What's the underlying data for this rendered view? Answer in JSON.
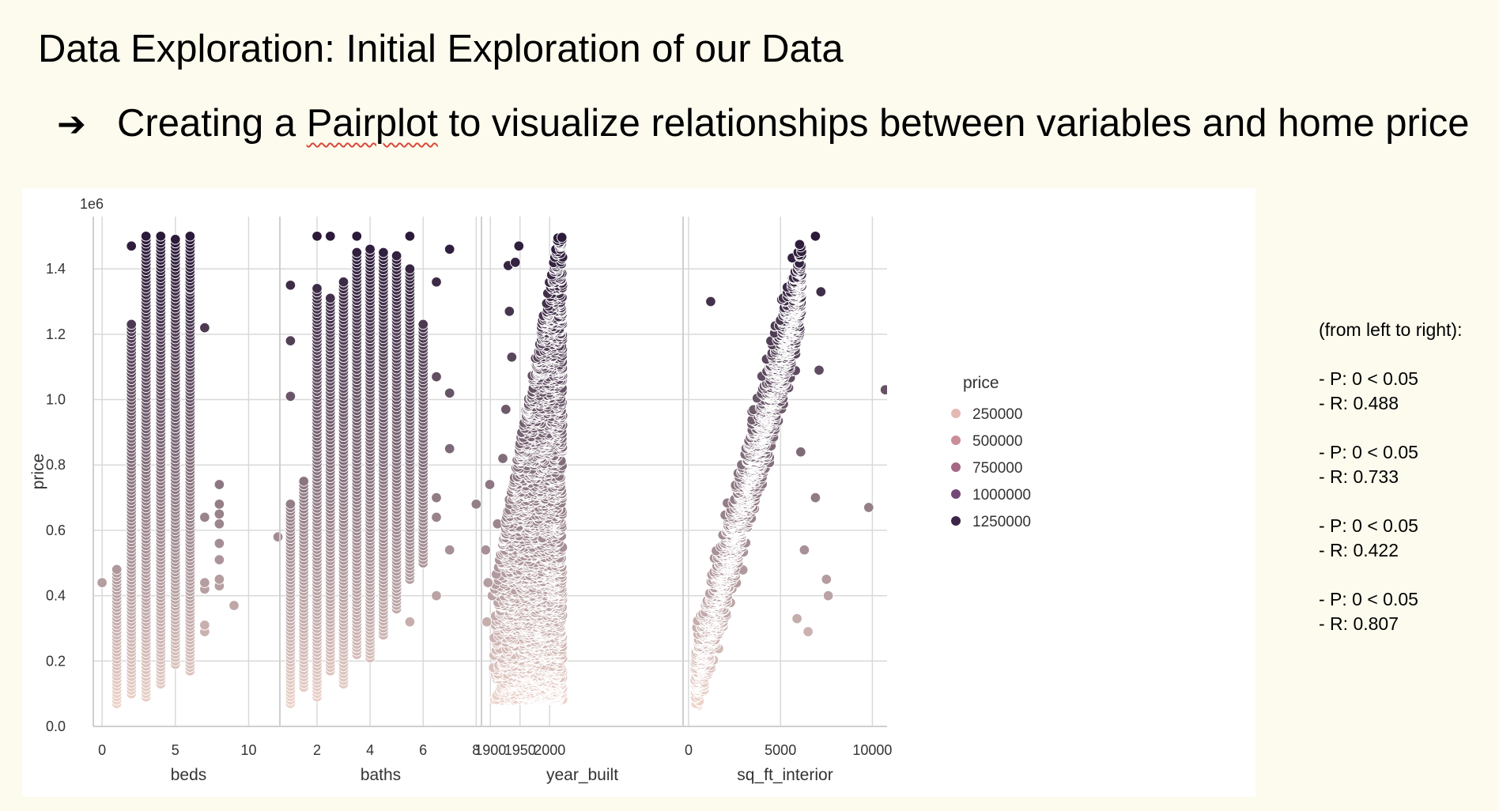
{
  "slide": {
    "title": "Data Exploration: Initial Exploration of our Data",
    "bullet_arrow": "➔",
    "bullet_before": "Creating a ",
    "bullet_underlined": "Pairplot",
    "bullet_after": " to visualize relationships between variables and home price"
  },
  "stats": {
    "note": "(from left to right):",
    "groups": [
      {
        "p": "- P: 0 < 0.05",
        "r": "- R: 0.488"
      },
      {
        "p": "- P: 0 < 0.05",
        "r": "- R: 0.733"
      },
      {
        "p": "- P: 0 < 0.05",
        "r": "- R: 0.422"
      },
      {
        "p": "- P: 0 < 0.05",
        "r": "- R: 0.807"
      }
    ]
  },
  "chart_data": {
    "type": "scatter",
    "ylabel": "price",
    "y_offset_label": "1e6",
    "ylim": [
      0,
      1.56
    ],
    "y_ticks": [
      0.0,
      0.2,
      0.4,
      0.6,
      0.8,
      1.0,
      1.2,
      1.4
    ],
    "y_tick_labels": [
      "0.0",
      "0.2",
      "0.4",
      "0.6",
      "0.8",
      "1.0",
      "1.2",
      "1.4"
    ],
    "grid": true,
    "legend": {
      "title": "price",
      "placement": "right",
      "entries": [
        "250000",
        "500000",
        "750000",
        "1000000",
        "1250000"
      ],
      "colors": [
        "#e4b9b3",
        "#c98e98",
        "#a66785",
        "#744876",
        "#3c2547"
      ]
    },
    "color_scale": {
      "low": "#f2d8ce",
      "high": "#2b1a39"
    },
    "panels": [
      {
        "xlabel": "beds",
        "xlim": [
          -0.6,
          12.4
        ],
        "x_ticks": [
          0,
          5,
          10
        ],
        "x_tick_labels": [
          "0",
          "5",
          "10"
        ],
        "columns": [
          {
            "x": 1,
            "min": 0.07,
            "max": 0.48
          },
          {
            "x": 2,
            "min": 0.1,
            "max": 1.23
          },
          {
            "x": 3,
            "min": 0.09,
            "max": 1.5
          },
          {
            "x": 4,
            "min": 0.13,
            "max": 1.5
          },
          {
            "x": 5,
            "min": 0.19,
            "max": 1.49
          },
          {
            "x": 6,
            "min": 0.17,
            "max": 1.5
          }
        ],
        "extra_points": [
          {
            "x": 0,
            "y": 0.44
          },
          {
            "x": 2,
            "y": 1.47
          },
          {
            "x": 6,
            "y": 1.34
          },
          {
            "x": 7,
            "y": 1.22
          },
          {
            "x": 7,
            "y": 0.64
          },
          {
            "x": 7,
            "y": 0.44
          },
          {
            "x": 7,
            "y": 0.42
          },
          {
            "x": 7,
            "y": 0.31
          },
          {
            "x": 7,
            "y": 0.29
          },
          {
            "x": 8,
            "y": 0.74
          },
          {
            "x": 8,
            "y": 0.68
          },
          {
            "x": 8,
            "y": 0.65
          },
          {
            "x": 8,
            "y": 0.62
          },
          {
            "x": 8,
            "y": 0.56
          },
          {
            "x": 8,
            "y": 0.51
          },
          {
            "x": 8,
            "y": 0.45
          },
          {
            "x": 8,
            "y": 0.43
          },
          {
            "x": 9,
            "y": 0.37
          },
          {
            "x": 12,
            "y": 0.58
          }
        ]
      },
      {
        "xlabel": "baths",
        "xlim": [
          0.6,
          8.2
        ],
        "x_ticks": [
          2,
          4,
          6,
          8
        ],
        "x_tick_labels": [
          "2",
          "4",
          "6",
          "8"
        ],
        "columns": [
          {
            "x": 1,
            "min": 0.07,
            "max": 0.68
          },
          {
            "x": 1.5,
            "min": 0.12,
            "max": 0.75
          },
          {
            "x": 2,
            "min": 0.09,
            "max": 1.34
          },
          {
            "x": 2.5,
            "min": 0.17,
            "max": 1.31
          },
          {
            "x": 3,
            "min": 0.13,
            "max": 1.36
          },
          {
            "x": 3.5,
            "min": 0.22,
            "max": 1.45
          },
          {
            "x": 4,
            "min": 0.21,
            "max": 1.46
          },
          {
            "x": 4.5,
            "min": 0.28,
            "max": 1.45
          },
          {
            "x": 5,
            "min": 0.36,
            "max": 1.44
          },
          {
            "x": 5.5,
            "min": 0.45,
            "max": 1.4
          },
          {
            "x": 6,
            "min": 0.5,
            "max": 1.23
          }
        ],
        "extra_points": [
          {
            "x": 1,
            "y": 1.35
          },
          {
            "x": 1,
            "y": 1.18
          },
          {
            "x": 1,
            "y": 1.01
          },
          {
            "x": 2,
            "y": 1.5
          },
          {
            "x": 2.5,
            "y": 1.5
          },
          {
            "x": 3.5,
            "y": 1.5
          },
          {
            "x": 5.5,
            "y": 1.5
          },
          {
            "x": 5.5,
            "y": 0.32
          },
          {
            "x": 6.5,
            "y": 1.36
          },
          {
            "x": 6.5,
            "y": 1.07
          },
          {
            "x": 6.5,
            "y": 0.7
          },
          {
            "x": 6.5,
            "y": 0.64
          },
          {
            "x": 6.5,
            "y": 0.4
          },
          {
            "x": 7,
            "y": 1.46
          },
          {
            "x": 7,
            "y": 1.02
          },
          {
            "x": 7,
            "y": 0.85
          },
          {
            "x": 7,
            "y": 0.54
          },
          {
            "x": 8,
            "y": 0.68
          }
        ]
      },
      {
        "xlabel": "year_built",
        "xlim": [
          1885,
          2225
        ],
        "x_ticks": [
          1900,
          1950,
          2000
        ],
        "x_tick_labels": [
          "1900",
          "1950",
          "2000"
        ],
        "extra_points": [
          {
            "x": 1892,
            "y": 0.54
          },
          {
            "x": 1896,
            "y": 0.44
          },
          {
            "x": 1899,
            "y": 0.74
          },
          {
            "x": 1894,
            "y": 0.32
          },
          {
            "x": 1903,
            "y": 0.4
          },
          {
            "x": 1905,
            "y": 0.18
          },
          {
            "x": 1912,
            "y": 0.62
          },
          {
            "x": 1918,
            "y": 0.46
          },
          {
            "x": 1921,
            "y": 0.82
          },
          {
            "x": 1926,
            "y": 0.97
          },
          {
            "x": 1930,
            "y": 1.41
          },
          {
            "x": 1936,
            "y": 1.13
          },
          {
            "x": 1942,
            "y": 1.42
          },
          {
            "x": 1948,
            "y": 1.47
          },
          {
            "x": 1932,
            "y": 1.27
          }
        ]
      },
      {
        "xlabel": "sq_ft_interior",
        "xlim": [
          -300,
          10800
        ],
        "x_ticks": [
          0,
          5000,
          10000
        ],
        "x_tick_labels": [
          "0",
          "5000",
          "10000"
        ],
        "extra_points": [
          {
            "x": 10700,
            "y": 1.03
          },
          {
            "x": 9800,
            "y": 0.67
          },
          {
            "x": 7500,
            "y": 0.45
          },
          {
            "x": 7600,
            "y": 0.4
          },
          {
            "x": 7100,
            "y": 1.09
          },
          {
            "x": 6500,
            "y": 0.29
          },
          {
            "x": 6900,
            "y": 0.7
          },
          {
            "x": 6300,
            "y": 0.54
          },
          {
            "x": 7200,
            "y": 1.33
          },
          {
            "x": 6900,
            "y": 1.5
          },
          {
            "x": 6100,
            "y": 0.84
          },
          {
            "x": 5900,
            "y": 0.33
          },
          {
            "x": 1200,
            "y": 1.3
          },
          {
            "x": 900,
            "y": 0.37
          },
          {
            "x": 400,
            "y": 0.07
          }
        ]
      }
    ]
  }
}
